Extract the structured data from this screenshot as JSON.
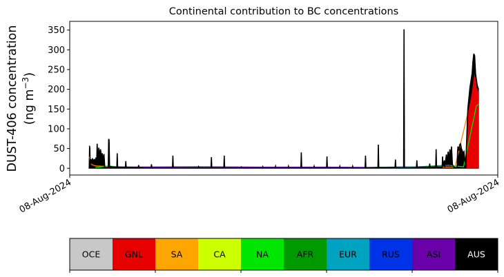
{
  "chart_data": {
    "type": "area",
    "title": "Continental contribution to BC concentrations",
    "ylabel_line1": "DUST-406 concentration",
    "ylabel_line2_prefix": "(ng m",
    "ylabel_line2_sup": "−3",
    "ylabel_line2_suffix": ")",
    "ylim": [
      -17,
      372
    ],
    "yticks": [
      0,
      50,
      100,
      150,
      200,
      250,
      300,
      350
    ],
    "xticks": [
      {
        "pos": 0.0,
        "label": "08-Aug-2024"
      },
      {
        "pos": 1.0,
        "label": "08-Aug-2024"
      }
    ],
    "x_start": 0.045,
    "x_end": 0.955,
    "grid": false,
    "total": {
      "name": "AUS",
      "color": "#000000",
      "points": [
        [
          0.045,
          0
        ],
        [
          0.046,
          57
        ],
        [
          0.047,
          52
        ],
        [
          0.048,
          0
        ],
        [
          0.049,
          22
        ],
        [
          0.051,
          20
        ],
        [
          0.053,
          24
        ],
        [
          0.055,
          18
        ],
        [
          0.057,
          22
        ],
        [
          0.059,
          20
        ],
        [
          0.061,
          25
        ],
        [
          0.063,
          18
        ],
        [
          0.064,
          62
        ],
        [
          0.066,
          22
        ],
        [
          0.068,
          52
        ],
        [
          0.07,
          28
        ],
        [
          0.072,
          48
        ],
        [
          0.074,
          30
        ],
        [
          0.076,
          38
        ],
        [
          0.078,
          22
        ],
        [
          0.08,
          36
        ],
        [
          0.082,
          2
        ],
        [
          0.09,
          2
        ],
        [
          0.091,
          74
        ],
        [
          0.092,
          72
        ],
        [
          0.093,
          5
        ],
        [
          0.1,
          3
        ],
        [
          0.11,
          2
        ],
        [
          0.111,
          38
        ],
        [
          0.112,
          3
        ],
        [
          0.13,
          2
        ],
        [
          0.131,
          18
        ],
        [
          0.132,
          2
        ],
        [
          0.16,
          2
        ],
        [
          0.161,
          8
        ],
        [
          0.162,
          2
        ],
        [
          0.18,
          1
        ],
        [
          0.19,
          1
        ],
        [
          0.191,
          10
        ],
        [
          0.192,
          1
        ],
        [
          0.24,
          1
        ],
        [
          0.241,
          32
        ],
        [
          0.242,
          1
        ],
        [
          0.3,
          1
        ],
        [
          0.301,
          4
        ],
        [
          0.302,
          1
        ],
        [
          0.33,
          1
        ],
        [
          0.331,
          28
        ],
        [
          0.332,
          1
        ],
        [
          0.36,
          1
        ],
        [
          0.361,
          32
        ],
        [
          0.362,
          1
        ],
        [
          0.4,
          1
        ],
        [
          0.401,
          3
        ],
        [
          0.402,
          1
        ],
        [
          0.45,
          1
        ],
        [
          0.451,
          4
        ],
        [
          0.452,
          1
        ],
        [
          0.48,
          1
        ],
        [
          0.481,
          5
        ],
        [
          0.482,
          1
        ],
        [
          0.51,
          1
        ],
        [
          0.511,
          5
        ],
        [
          0.512,
          1
        ],
        [
          0.54,
          1
        ],
        [
          0.541,
          40
        ],
        [
          0.542,
          1
        ],
        [
          0.57,
          1
        ],
        [
          0.571,
          5
        ],
        [
          0.572,
          1
        ],
        [
          0.6,
          1
        ],
        [
          0.601,
          30
        ],
        [
          0.602,
          1
        ],
        [
          0.63,
          1
        ],
        [
          0.631,
          5
        ],
        [
          0.632,
          1
        ],
        [
          0.66,
          1
        ],
        [
          0.661,
          5
        ],
        [
          0.662,
          1
        ],
        [
          0.69,
          1
        ],
        [
          0.691,
          32
        ],
        [
          0.692,
          1
        ],
        [
          0.72,
          2
        ],
        [
          0.721,
          60
        ],
        [
          0.722,
          2
        ],
        [
          0.76,
          2
        ],
        [
          0.761,
          22
        ],
        [
          0.762,
          2
        ],
        [
          0.78,
          1
        ],
        [
          0.781,
          352
        ],
        [
          0.782,
          1
        ],
        [
          0.81,
          2
        ],
        [
          0.811,
          20
        ],
        [
          0.812,
          2
        ],
        [
          0.84,
          2
        ],
        [
          0.841,
          12
        ],
        [
          0.842,
          2
        ],
        [
          0.855,
          3
        ],
        [
          0.856,
          48
        ],
        [
          0.857,
          3
        ],
        [
          0.87,
          2
        ],
        [
          0.871,
          30
        ],
        [
          0.872,
          5
        ],
        [
          0.875,
          20
        ],
        [
          0.876,
          3
        ],
        [
          0.88,
          35
        ],
        [
          0.881,
          8
        ],
        [
          0.884,
          42
        ],
        [
          0.886,
          20
        ],
        [
          0.888,
          48
        ],
        [
          0.89,
          25
        ],
        [
          0.892,
          55
        ],
        [
          0.894,
          10
        ],
        [
          0.896,
          5
        ],
        [
          0.9,
          2
        ],
        [
          0.905,
          2
        ],
        [
          0.906,
          40
        ],
        [
          0.907,
          55
        ],
        [
          0.909,
          45
        ],
        [
          0.911,
          60
        ],
        [
          0.913,
          62
        ],
        [
          0.915,
          50
        ],
        [
          0.917,
          45
        ],
        [
          0.919,
          38
        ],
        [
          0.921,
          42
        ],
        [
          0.925,
          3
        ],
        [
          0.93,
          150
        ],
        [
          0.935,
          205
        ],
        [
          0.94,
          240
        ],
        [
          0.942,
          270
        ],
        [
          0.944,
          290
        ],
        [
          0.946,
          285
        ],
        [
          0.948,
          240
        ],
        [
          0.95,
          225
        ],
        [
          0.952,
          210
        ],
        [
          0.955,
          200
        ],
        [
          0.955,
          0
        ]
      ]
    },
    "gnl": {
      "name": "GNL",
      "color": "#e60000",
      "points": [
        [
          0.927,
          0
        ],
        [
          0.928,
          130
        ],
        [
          0.932,
          150
        ],
        [
          0.936,
          170
        ],
        [
          0.94,
          195
        ],
        [
          0.944,
          230
        ],
        [
          0.946,
          240
        ],
        [
          0.948,
          225
        ],
        [
          0.95,
          210
        ],
        [
          0.952,
          200
        ],
        [
          0.955,
          195
        ],
        [
          0.955,
          0
        ]
      ]
    },
    "lines": [
      {
        "name": "OCE",
        "color": "#ff8000",
        "points": [
          [
            0.045,
            30
          ],
          [
            0.05,
            10
          ],
          [
            0.06,
            6
          ],
          [
            0.08,
            5
          ],
          [
            0.1,
            4
          ],
          [
            0.2,
            3
          ],
          [
            0.4,
            2
          ],
          [
            0.6,
            2
          ],
          [
            0.8,
            2
          ],
          [
            0.9,
            3
          ],
          [
            0.93,
            140
          ]
        ]
      },
      {
        "name": "NA",
        "color": "#00e600",
        "points": [
          [
            0.06,
            2
          ],
          [
            0.09,
            6
          ],
          [
            0.12,
            3
          ],
          [
            0.3,
            2
          ],
          [
            0.5,
            2
          ],
          [
            0.7,
            2
          ],
          [
            0.8,
            3
          ],
          [
            0.88,
            8
          ],
          [
            0.92,
            4
          ],
          [
            0.95,
            158
          ],
          [
            0.955,
            162
          ]
        ]
      },
      {
        "name": "ASI",
        "color": "#6a00a8",
        "points": [
          [
            0.09,
            4
          ],
          [
            0.15,
            3
          ],
          [
            0.3,
            4
          ],
          [
            0.45,
            3
          ],
          [
            0.6,
            3
          ],
          [
            0.75,
            2
          ],
          [
            0.85,
            5
          ],
          [
            0.89,
            6
          ]
        ]
      },
      {
        "name": "EUR",
        "color": "#00a3bf",
        "points": [
          [
            0.7,
            2
          ],
          [
            0.78,
            4
          ],
          [
            0.83,
            3
          ],
          [
            0.87,
            4
          ]
        ]
      }
    ]
  },
  "legend": [
    {
      "label": "OCE",
      "color": "#c8c8c8",
      "text_color": "#000000"
    },
    {
      "label": "GNL",
      "color": "#e60000",
      "text_color": "#000000"
    },
    {
      "label": "SA",
      "color": "#ffa500",
      "text_color": "#000000"
    },
    {
      "label": "CA",
      "color": "#ccff00",
      "text_color": "#000000"
    },
    {
      "label": "NA",
      "color": "#00e600",
      "text_color": "#000000"
    },
    {
      "label": "AFR",
      "color": "#009a00",
      "text_color": "#000000"
    },
    {
      "label": "EUR",
      "color": "#00a3bf",
      "text_color": "#000000"
    },
    {
      "label": "RUS",
      "color": "#0032e6",
      "text_color": "#000000"
    },
    {
      "label": "ASI",
      "color": "#6a00a8",
      "text_color": "#000000"
    },
    {
      "label": "AUS",
      "color": "#000000",
      "text_color": "#ffffff"
    }
  ]
}
